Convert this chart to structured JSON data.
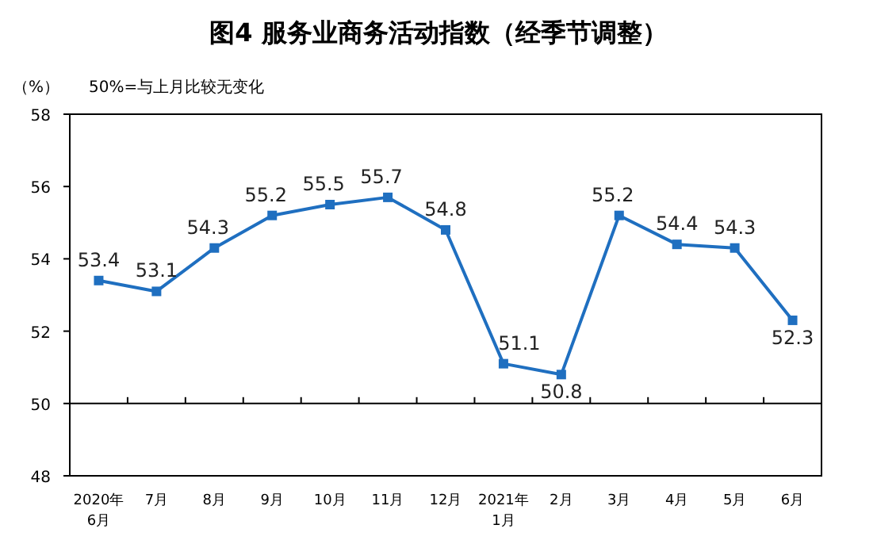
{
  "chart_data": {
    "type": "line",
    "title": "图4  服务业商务活动指数（经季节调整）",
    "ylabel": "（%）",
    "annotations": [
      "50%=与上月比较无变化"
    ],
    "categories": [
      "2020年\n6月",
      "7月",
      "8月",
      "9月",
      "10月",
      "11月",
      "12月",
      "2021年\n1月",
      "2月",
      "3月",
      "4月",
      "5月",
      "6月"
    ],
    "series": [
      {
        "color": "#1f6fc0",
        "values": [
          53.4,
          53.1,
          54.3,
          55.2,
          55.5,
          55.7,
          54.8,
          51.1,
          50.8,
          55.2,
          54.4,
          54.3,
          52.3
        ]
      }
    ],
    "ylim": [
      48,
      58
    ],
    "yticks": [
      48,
      50,
      52,
      54,
      56,
      58
    ],
    "ref_lines": [
      {
        "axis": "y",
        "value": 50,
        "color": "#000000"
      }
    ],
    "marker": "square",
    "data_labels": true,
    "grid": false
  }
}
